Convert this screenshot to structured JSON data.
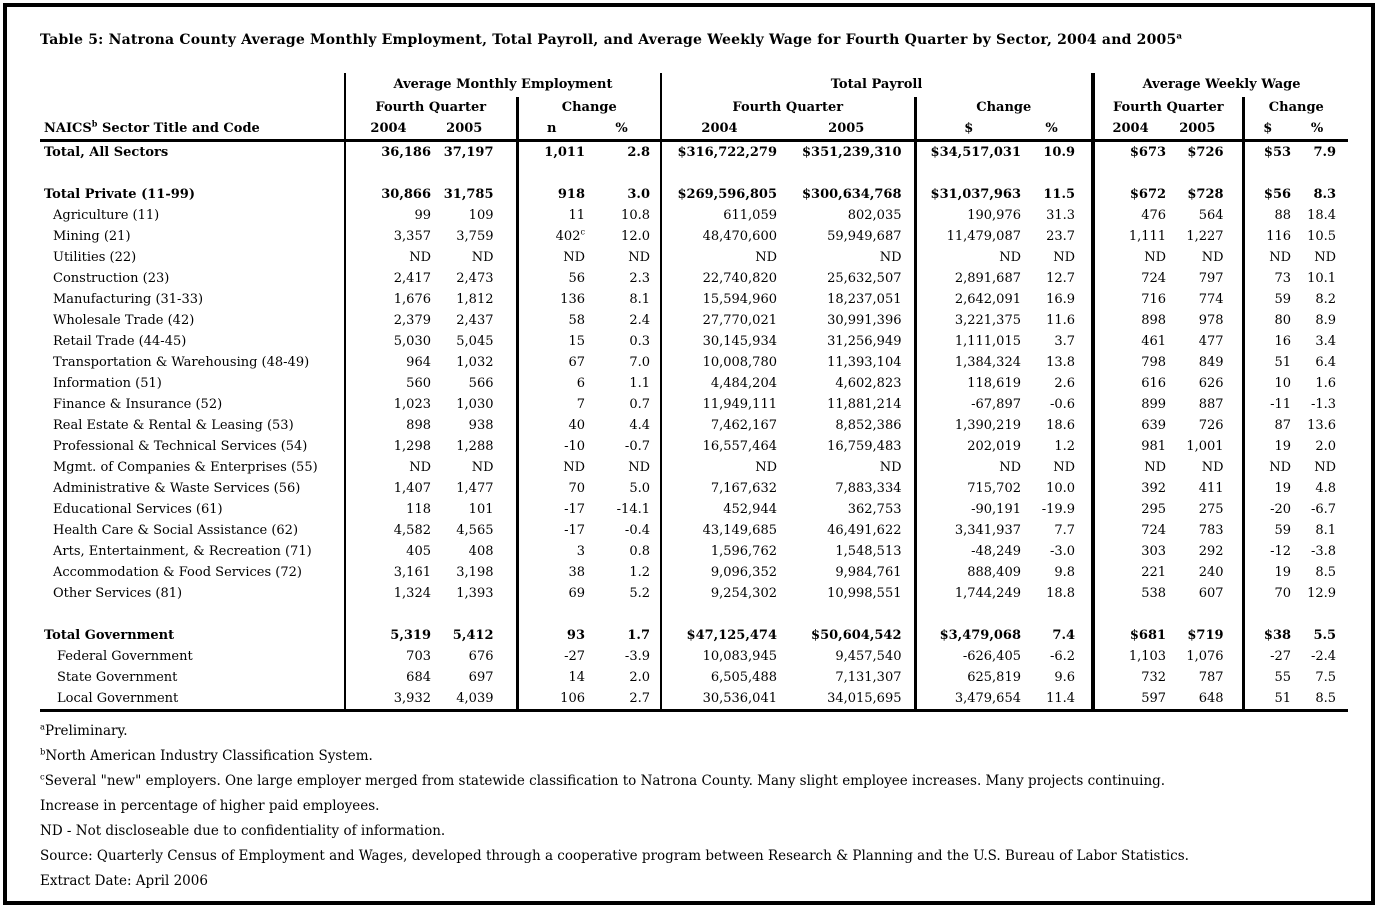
{
  "page": {
    "title": "Table 5: Natrona County Average Monthly Employment, Total Payroll, and Average Weekly Wage for Fourth Quarter by Sector, 2004 and 2005^a"
  },
  "table": {
    "corner_header": "NAICS^b Sector Title and Code",
    "groups": [
      {
        "label": "Average Monthly Employment",
        "fq": "Fourth Quarter",
        "chg": "Change",
        "cols": [
          "2004",
          "2005",
          "n",
          "%"
        ]
      },
      {
        "label": "Total Payroll",
        "fq": "Fourth Quarter",
        "chg": "Change",
        "cols": [
          "2004",
          "2005",
          "$",
          "%"
        ]
      },
      {
        "label": "Average Weekly Wage",
        "fq": "Fourth Quarter",
        "chg": "Change",
        "cols": [
          "2004",
          "2005",
          "$",
          "%"
        ]
      }
    ],
    "rows": [
      {
        "label": "Total, All Sectors",
        "bold": true,
        "indent": 0,
        "values": [
          "36,186",
          "37,197",
          "1,011",
          "2.8",
          "$316,722,279",
          "$351,239,310",
          "$34,517,031",
          "10.9",
          "$673",
          "$726",
          "$53",
          "7.9"
        ]
      },
      {
        "spacer": true
      },
      {
        "label": "Total Private (11-99)",
        "bold": true,
        "indent": 0,
        "values": [
          "30,866",
          "31,785",
          "918",
          "3.0",
          "$269,596,805",
          "$300,634,768",
          "$31,037,963",
          "11.5",
          "$672",
          "$728",
          "$56",
          "8.3"
        ]
      },
      {
        "label": "Agriculture (11)",
        "indent": 1,
        "values": [
          "99",
          "109",
          "11",
          "10.8",
          "611,059",
          "802,035",
          "190,976",
          "31.3",
          "476",
          "564",
          "88",
          "18.4"
        ]
      },
      {
        "label": "Mining (21)",
        "indent": 1,
        "values": [
          "3,357",
          "3,759",
          "402^c",
          "12.0",
          "48,470,600",
          "59,949,687",
          "11,479,087",
          "23.7",
          "1,111",
          "1,227",
          "116",
          "10.5"
        ]
      },
      {
        "label": "Utilities (22)",
        "indent": 1,
        "values": [
          "ND",
          "ND",
          "ND",
          "ND",
          "ND",
          "ND",
          "ND",
          "ND",
          "ND",
          "ND",
          "ND",
          "ND"
        ]
      },
      {
        "label": "Construction (23)",
        "indent": 1,
        "values": [
          "2,417",
          "2,473",
          "56",
          "2.3",
          "22,740,820",
          "25,632,507",
          "2,891,687",
          "12.7",
          "724",
          "797",
          "73",
          "10.1"
        ]
      },
      {
        "label": "Manufacturing (31-33)",
        "indent": 1,
        "values": [
          "1,676",
          "1,812",
          "136",
          "8.1",
          "15,594,960",
          "18,237,051",
          "2,642,091",
          "16.9",
          "716",
          "774",
          "59",
          "8.2"
        ]
      },
      {
        "label": "Wholesale Trade (42)",
        "indent": 1,
        "values": [
          "2,379",
          "2,437",
          "58",
          "2.4",
          "27,770,021",
          "30,991,396",
          "3,221,375",
          "11.6",
          "898",
          "978",
          "80",
          "8.9"
        ]
      },
      {
        "label": "Retail Trade (44-45)",
        "indent": 1,
        "values": [
          "5,030",
          "5,045",
          "15",
          "0.3",
          "30,145,934",
          "31,256,949",
          "1,111,015",
          "3.7",
          "461",
          "477",
          "16",
          "3.4"
        ]
      },
      {
        "label": "Transportation & Warehousing (48-49)",
        "indent": 1,
        "values": [
          "964",
          "1,032",
          "67",
          "7.0",
          "10,008,780",
          "11,393,104",
          "1,384,324",
          "13.8",
          "798",
          "849",
          "51",
          "6.4"
        ]
      },
      {
        "label": "Information (51)",
        "indent": 1,
        "values": [
          "560",
          "566",
          "6",
          "1.1",
          "4,484,204",
          "4,602,823",
          "118,619",
          "2.6",
          "616",
          "626",
          "10",
          "1.6"
        ]
      },
      {
        "label": "Finance & Insurance (52)",
        "indent": 1,
        "values": [
          "1,023",
          "1,030",
          "7",
          "0.7",
          "11,949,111",
          "11,881,214",
          "-67,897",
          "-0.6",
          "899",
          "887",
          "-11",
          "-1.3"
        ]
      },
      {
        "label": "Real Estate & Rental & Leasing (53)",
        "indent": 1,
        "values": [
          "898",
          "938",
          "40",
          "4.4",
          "7,462,167",
          "8,852,386",
          "1,390,219",
          "18.6",
          "639",
          "726",
          "87",
          "13.6"
        ]
      },
      {
        "label": "Professional & Technical Services (54)",
        "indent": 1,
        "values": [
          "1,298",
          "1,288",
          "-10",
          "-0.7",
          "16,557,464",
          "16,759,483",
          "202,019",
          "1.2",
          "981",
          "1,001",
          "19",
          "2.0"
        ]
      },
      {
        "label": "Mgmt. of Companies & Enterprises (55)",
        "indent": 1,
        "values": [
          "ND",
          "ND",
          "ND",
          "ND",
          "ND",
          "ND",
          "ND",
          "ND",
          "ND",
          "ND",
          "ND",
          "ND"
        ]
      },
      {
        "label": "Administrative & Waste Services (56)",
        "indent": 1,
        "values": [
          "1,407",
          "1,477",
          "70",
          "5.0",
          "7,167,632",
          "7,883,334",
          "715,702",
          "10.0",
          "392",
          "411",
          "19",
          "4.8"
        ]
      },
      {
        "label": "Educational Services (61)",
        "indent": 1,
        "values": [
          "118",
          "101",
          "-17",
          "-14.1",
          "452,944",
          "362,753",
          "-90,191",
          "-19.9",
          "295",
          "275",
          "-20",
          "-6.7"
        ]
      },
      {
        "label": "Health Care & Social Assistance (62)",
        "indent": 1,
        "values": [
          "4,582",
          "4,565",
          "-17",
          "-0.4",
          "43,149,685",
          "46,491,622",
          "3,341,937",
          "7.7",
          "724",
          "783",
          "59",
          "8.1"
        ]
      },
      {
        "label": "Arts, Entertainment, & Recreation (71)",
        "indent": 1,
        "values": [
          "405",
          "408",
          "3",
          "0.8",
          "1,596,762",
          "1,548,513",
          "-48,249",
          "-3.0",
          "303",
          "292",
          "-12",
          "-3.8"
        ]
      },
      {
        "label": "Accommodation & Food Services (72)",
        "indent": 1,
        "values": [
          "3,161",
          "3,198",
          "38",
          "1.2",
          "9,096,352",
          "9,984,761",
          "888,409",
          "9.8",
          "221",
          "240",
          "19",
          "8.5"
        ]
      },
      {
        "label": "Other Services (81)",
        "indent": 1,
        "values": [
          "1,324",
          "1,393",
          "69",
          "5.2",
          "9,254,302",
          "10,998,551",
          "1,744,249",
          "18.8",
          "538",
          "607",
          "70",
          "12.9"
        ]
      },
      {
        "spacer": true
      },
      {
        "label": "Total Government",
        "bold": true,
        "indent": 0,
        "values": [
          "5,319",
          "5,412",
          "93",
          "1.7",
          "$47,125,474",
          "$50,604,542",
          "$3,479,068",
          "7.4",
          "$681",
          "$719",
          "$38",
          "5.5"
        ]
      },
      {
        "label": "Federal Government",
        "indent": 2,
        "values": [
          "703",
          "676",
          "-27",
          "-3.9",
          "10,083,945",
          "9,457,540",
          "-626,405",
          "-6.2",
          "1,103",
          "1,076",
          "-27",
          "-2.4"
        ]
      },
      {
        "label": "State Government",
        "indent": 2,
        "values": [
          "684",
          "697",
          "14",
          "2.0",
          "6,505,488",
          "7,131,307",
          "625,819",
          "9.6",
          "732",
          "787",
          "55",
          "7.5"
        ]
      },
      {
        "label": "Local Government",
        "indent": 2,
        "values": [
          "3,932",
          "4,039",
          "106",
          "2.7",
          "30,536,041",
          "34,015,695",
          "3,479,654",
          "11.4",
          "597",
          "648",
          "51",
          "8.5"
        ]
      }
    ]
  },
  "footnotes": [
    "^aPreliminary.",
    "^bNorth American Industry Classification System.",
    "^cSeveral \"new\" employers. One large employer merged from statewide classification to Natrona County. Many slight employee increases. Many projects continuing.",
    "Increase in percentage of higher paid employees.",
    "ND - Not discloseable due to confidentiality of information.",
    "Source: Quarterly Census of Employment and Wages, developed through a cooperative program between Research & Planning and the U.S. Bureau of Labor Statistics.",
    "Extract Date: April 2006"
  ]
}
